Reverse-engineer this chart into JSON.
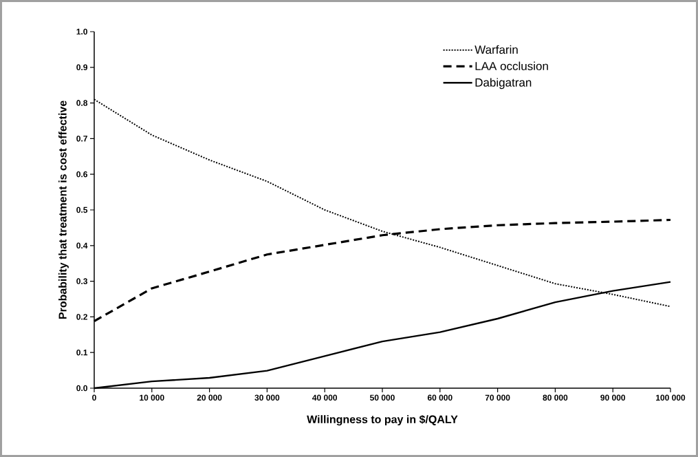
{
  "chart_data": {
    "type": "line",
    "xlabel": "Willingness to pay in $/QALY",
    "ylabel": "Probability that treatment is cost effective",
    "x": [
      0,
      10000,
      20000,
      30000,
      40000,
      50000,
      60000,
      70000,
      80000,
      90000,
      100000
    ],
    "series": [
      {
        "name": "Warfarin",
        "color": "#000000",
        "line_style": "dotted",
        "values": [
          0.81,
          0.71,
          0.64,
          0.58,
          0.5,
          0.44,
          0.395,
          0.344,
          0.293,
          0.263,
          0.229
        ]
      },
      {
        "name": "LAA occlusion",
        "color": "#000000",
        "line_style": "dashed",
        "values": [
          0.188,
          0.28,
          0.327,
          0.375,
          0.402,
          0.429,
          0.446,
          0.457,
          0.463,
          0.467,
          0.472
        ]
      },
      {
        "name": "Dabigatran",
        "color": "#000000",
        "line_style": "solid",
        "values": [
          0.0,
          0.019,
          0.029,
          0.049,
          0.09,
          0.131,
          0.157,
          0.195,
          0.241,
          0.273,
          0.298
        ]
      }
    ],
    "xlim": [
      0,
      100000
    ],
    "ylim": [
      0,
      1
    ],
    "xticks": [
      0,
      {
        "value": 10000,
        "label": "10 000"
      },
      {
        "value": 20000,
        "label": "20 000"
      },
      {
        "value": 30000,
        "label": "30 000"
      },
      {
        "value": 40000,
        "label": "40 000"
      },
      {
        "value": 50000,
        "label": "50 000"
      },
      {
        "value": 60000,
        "label": "60 000"
      },
      {
        "value": 70000,
        "label": "70 000"
      },
      {
        "value": 80000,
        "label": "80 000"
      },
      {
        "value": 90000,
        "label": "90 000"
      },
      {
        "value": 100000,
        "label": "100 000"
      }
    ],
    "yticks": [
      {
        "value": 0,
        "label": "0.0"
      },
      {
        "value": 0.1,
        "label": "0.1"
      },
      {
        "value": 0.2,
        "label": "0.2"
      },
      {
        "value": 0.3,
        "label": "0.3"
      },
      {
        "value": 0.4,
        "label": "0.4"
      },
      {
        "value": 0.5,
        "label": "0.5"
      },
      {
        "value": 0.6,
        "label": "0.6"
      },
      {
        "value": 0.7,
        "label": "0.7"
      },
      {
        "value": 0.8,
        "label": "0.8"
      },
      {
        "value": 0.9,
        "label": "0.9"
      },
      {
        "value": 1,
        "label": "1.0"
      }
    ],
    "legend": "top right"
  }
}
